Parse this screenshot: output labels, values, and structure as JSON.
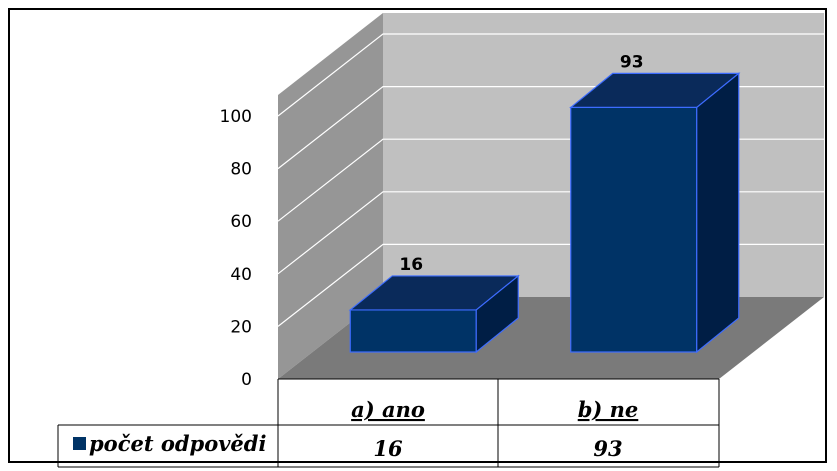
{
  "chart_data": {
    "type": "bar",
    "categories": [
      "a) ano",
      "b) ne"
    ],
    "series": [
      {
        "name": "počet odpovědi",
        "values": [
          16,
          93
        ]
      }
    ],
    "data_labels": [
      "16",
      "93"
    ],
    "ylim": [
      0,
      100
    ],
    "yticks": [
      0,
      20,
      40,
      60,
      80,
      100
    ],
    "grid": true,
    "legend_placement": "data-table",
    "colors": {
      "bar_front": "#003366",
      "bar_top": "#0a2a5a",
      "bar_side": "#001e45",
      "bar_edge": "#3d6cff",
      "back_wall": "#c0c0c0",
      "side_wall": "#969696",
      "floor": "#7a7a7a",
      "gridline": "#ffffff"
    }
  }
}
